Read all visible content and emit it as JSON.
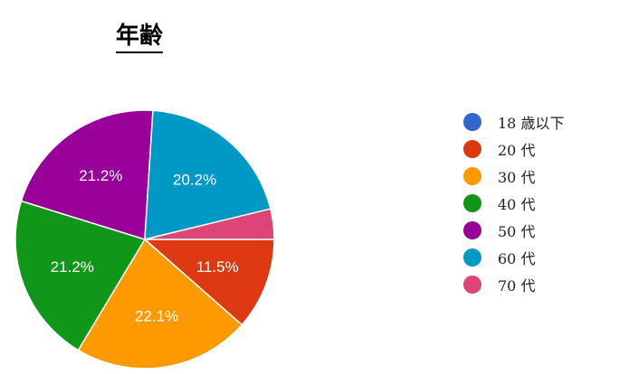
{
  "chart_data": {
    "type": "pie",
    "title": "年齢",
    "slices": [
      {
        "label": "18 歳以下",
        "value": 0,
        "display": "",
        "color": "#3366cc"
      },
      {
        "label": "20 代",
        "value": 11.5,
        "display": "11.5%",
        "color": "#dc3912"
      },
      {
        "label": "30 代",
        "value": 22.1,
        "display": "22.1%",
        "color": "#ff9900"
      },
      {
        "label": "40 代",
        "value": 21.2,
        "display": "21.2%",
        "color": "#109618"
      },
      {
        "label": "50 代",
        "value": 21.2,
        "display": "21.2%",
        "color": "#990099"
      },
      {
        "label": "60 代",
        "value": 20.2,
        "display": "20.2%",
        "color": "#0099c6"
      },
      {
        "label": "70 代",
        "value": 3.8,
        "display": "",
        "color": "#dd4477"
      }
    ],
    "start_position": "3 o'clock",
    "direction": "clockwise",
    "legend_position": "right"
  }
}
